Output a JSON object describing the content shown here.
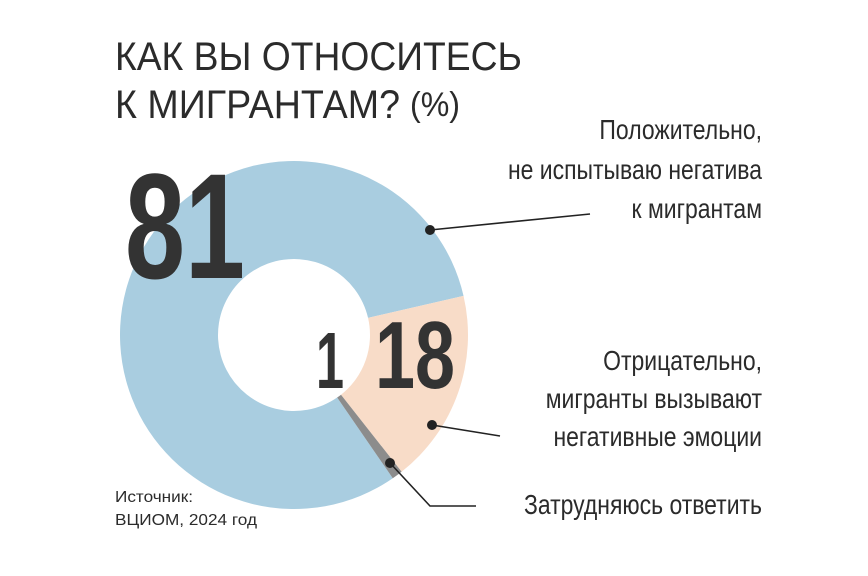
{
  "chart_data": {
    "type": "donut",
    "title": [
      "КАК ВЫ ОТНОСИТЕСЬ",
      "К МИГРАНТАМ?"
    ],
    "unit": "(%)",
    "categories": [
      [
        "Положительно,",
        "не испытываю негатива",
        "к мигрантам"
      ],
      [
        "Отрицательно,",
        "мигранты вызывают",
        "негативные эмоции"
      ],
      [
        "Затрудняюсь ответить"
      ]
    ],
    "values": [
      81,
      18,
      1
    ],
    "colors": [
      "#a9cde0",
      "#f8dcc8",
      "#8c8c8c"
    ],
    "source": [
      "Источник:",
      "ВЦИОМ, 2024 год"
    ]
  }
}
